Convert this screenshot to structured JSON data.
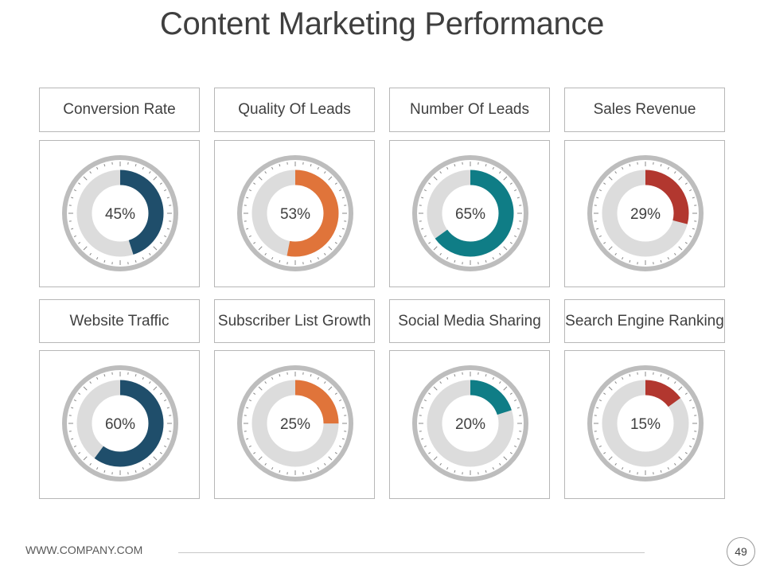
{
  "title": "Content Marketing Performance",
  "footer": {
    "website": "WWW.COMPANY.COM",
    "page_number": "49"
  },
  "colors": {
    "navy": "#1f4e6b",
    "orange": "#e0743a",
    "teal": "#0f7d86",
    "red": "#b2372f",
    "ring": "#bdbdbd",
    "track": "#dcdcdc"
  },
  "chart_data": [
    {
      "type": "pie",
      "title": "Conversion Rate",
      "value": 45,
      "label": "45%",
      "color": "#1f4e6b"
    },
    {
      "type": "pie",
      "title": "Quality Of Leads",
      "value": 53,
      "label": "53%",
      "color": "#e0743a"
    },
    {
      "type": "pie",
      "title": "Number Of Leads",
      "value": 65,
      "label": "65%",
      "color": "#0f7d86"
    },
    {
      "type": "pie",
      "title": "Sales Revenue",
      "value": 29,
      "label": "29%",
      "color": "#b2372f"
    },
    {
      "type": "pie",
      "title": "Website Traffic",
      "value": 60,
      "label": "60%",
      "color": "#1f4e6b"
    },
    {
      "type": "pie",
      "title": "Subscriber List Growth",
      "value": 25,
      "label": "25%",
      "color": "#e0743a"
    },
    {
      "type": "pie",
      "title": "Social Media Sharing",
      "value": 20,
      "label": "20%",
      "color": "#0f7d86"
    },
    {
      "type": "pie",
      "title": "Search Engine Ranking",
      "value": 15,
      "label": "15%",
      "color": "#b2372f"
    }
  ]
}
